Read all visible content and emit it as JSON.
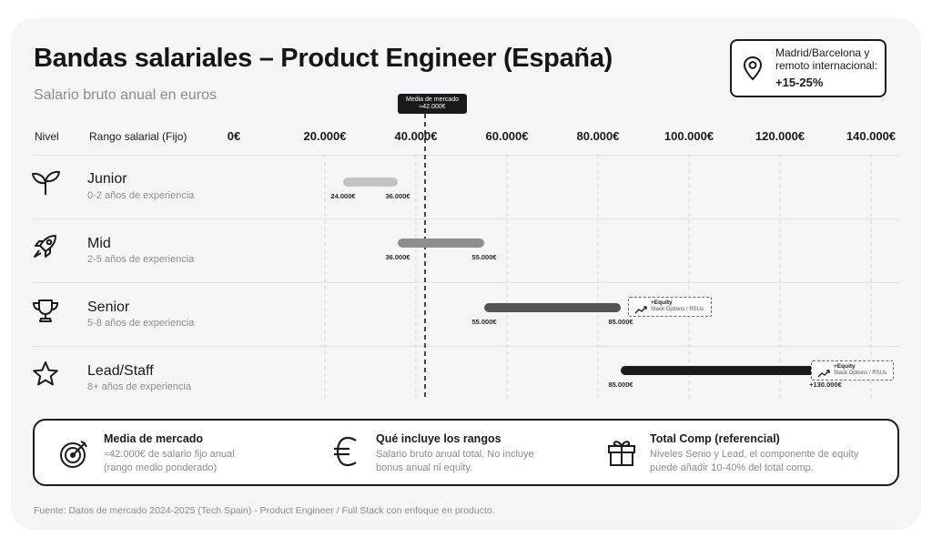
{
  "header": {
    "title": "Bandas salariales – Product Engineer (España)",
    "subtitle": "Salario bruto anual  en euros"
  },
  "region_note": {
    "text": "Madrid/Barcelona y remoto internacional:",
    "value": "+15-25%",
    "icon": "map-pin-icon"
  },
  "columns": {
    "level": "Nivel",
    "range": "Rango salarial (Fijo)"
  },
  "chart_data": {
    "type": "bar",
    "subtype": "floating-range",
    "title": "Bandas salariales – Product Engineer (España)",
    "subtitle": "Salario bruto anual  en euros",
    "x_axis": {
      "min": 0,
      "max": 140000,
      "ticks": [
        0,
        20000,
        40000,
        60000,
        80000,
        100000,
        120000,
        140000
      ],
      "tick_labels": [
        "0€",
        "20.000€",
        "40.000€",
        "60.000€",
        "80.000€",
        "100.000€",
        "120.000€",
        "140.000€"
      ]
    },
    "grid": true,
    "reference_line": {
      "value": 42000,
      "label": "Media de mercado",
      "value_label": "≈42.000€"
    },
    "series": [
      {
        "level": "Junior",
        "experience": "0-2 años de experiencia",
        "min": 24000,
        "max": 36000,
        "min_label": "24.000€",
        "max_label": "36.000€",
        "color": "#c2c2c4",
        "icon": "sprout-icon",
        "equity": false
      },
      {
        "level": "Mid",
        "experience": "2-5 años de experiencia",
        "min": 36000,
        "max": 55000,
        "min_label": "36.000€",
        "max_label": "55.000€",
        "color": "#8e8e91",
        "icon": "rocket-icon",
        "equity": false
      },
      {
        "level": "Senior",
        "experience": "5-8 años de experiencia",
        "min": 55000,
        "max": 85000,
        "min_label": "55.000€",
        "max_label": "85.000€",
        "color": "#545456",
        "icon": "trophy-icon",
        "equity": true
      },
      {
        "level": "Lead/Staff",
        "experience": "8+ años de experiencia",
        "min": 85000,
        "max": 130000,
        "min_label": "85.000€",
        "max_label": "+130.000€",
        "color": "#1a1a1a",
        "icon": "star-icon",
        "equity": true
      }
    ],
    "equity_note": {
      "title": "+Equity",
      "text": "Stack Options / RSUs",
      "icon": "chart-up-icon"
    }
  },
  "info": [
    {
      "title": "Media de mercado",
      "lines": [
        "≈42.000€ de salario fijo anual",
        "(rango medio ponderado)"
      ],
      "icon": "target-icon"
    },
    {
      "title": "Qué incluye los rangos",
      "lines": [
        "Salario bruto anual total. No incluye",
        "bonus anual ni equity."
      ],
      "icon": "euro-icon"
    },
    {
      "title": "Total Comp (referencial)",
      "lines": [
        "Niveles Senio y Lead, el componente de equity",
        "puede añadir 10-40% del total comp."
      ],
      "icon": "gift-icon"
    }
  ],
  "source": "Fuente: Datos de mercado 2024-2025 (Tech Spain) - Product Engineer / Full Stack con enfoque en producto."
}
